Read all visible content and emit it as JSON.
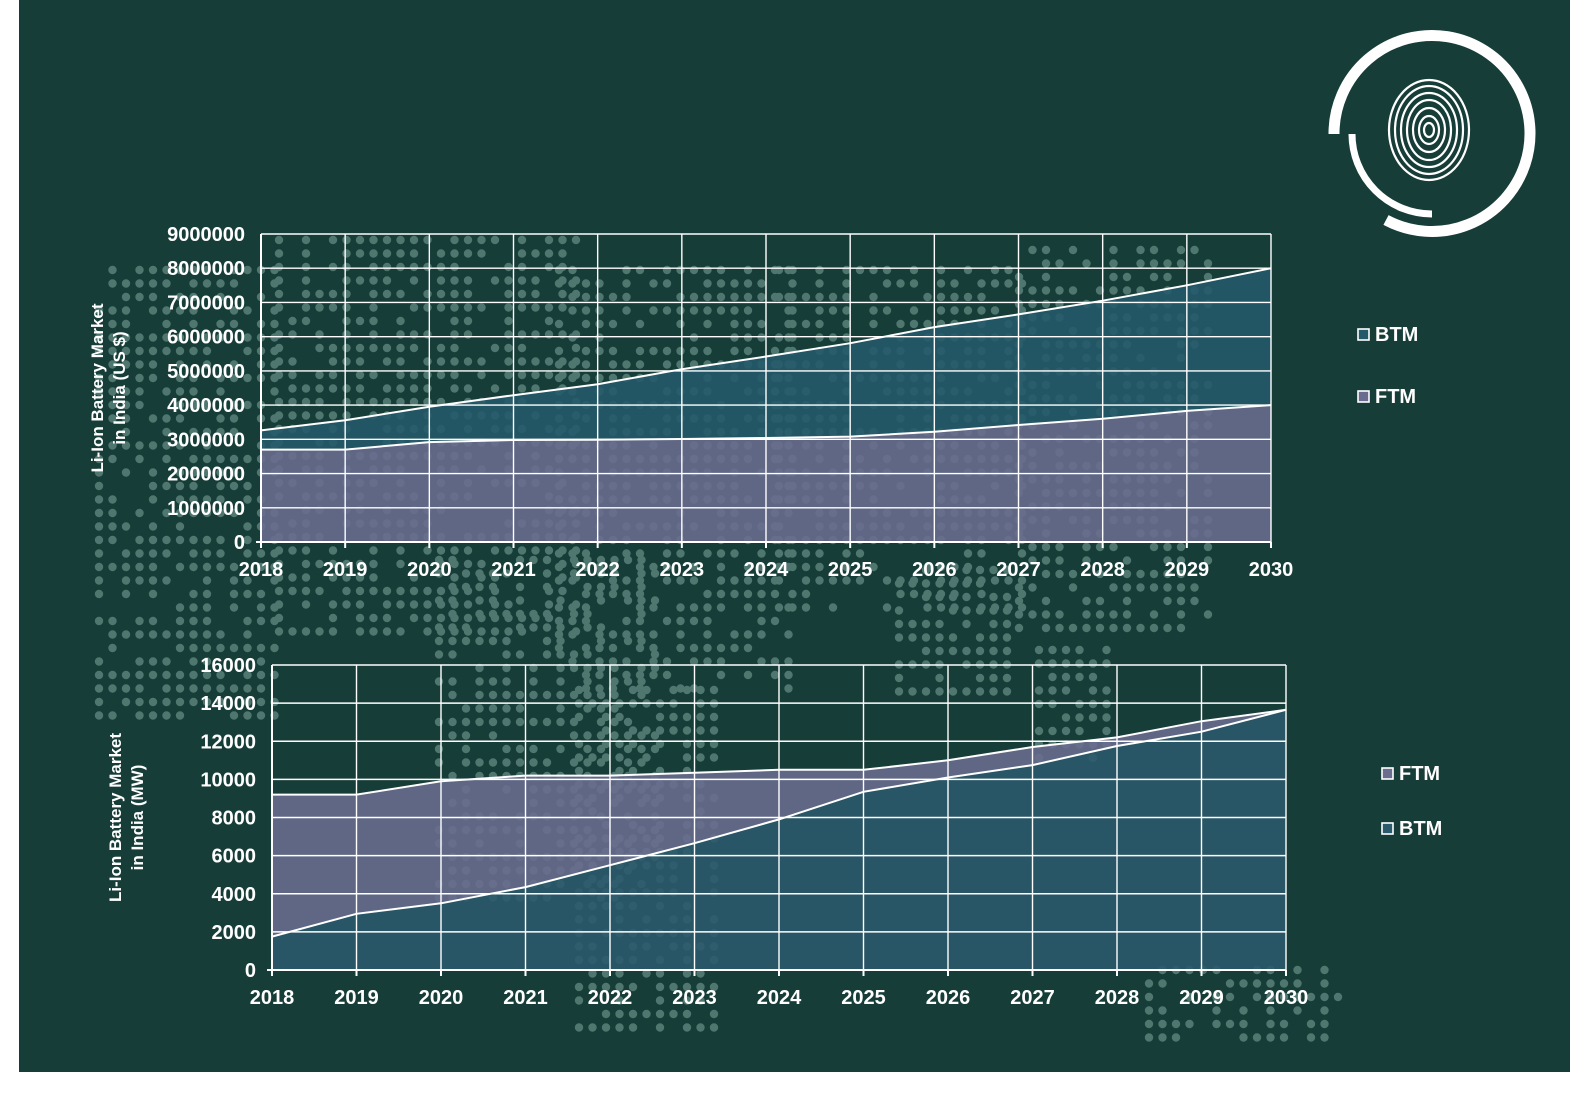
{
  "colors": {
    "background": "#173d38",
    "btm_fill": "#245a6a",
    "ftm_fill": "#6a6d90",
    "grid": "#ffffff",
    "text": "#ffffff",
    "dots": "#4f7770"
  },
  "logo": {
    "name": "fingerprint-logo"
  },
  "chart_data": [
    {
      "type": "area",
      "stacked": true,
      "categories": [
        "2018",
        "2019",
        "2020",
        "2021",
        "2022",
        "2023",
        "2024",
        "2025",
        "2026",
        "2027",
        "2028",
        "2029",
        "2030"
      ],
      "ylabel": "Li-Ion Battery Market in India (US $)",
      "ylabel_lines": [
        "Li-Ion Battery Market",
        "in India (US $)"
      ],
      "ylim": [
        0,
        9000000
      ],
      "yticks": [
        "0",
        "1000000",
        "2000000",
        "3000000",
        "4000000",
        "5000000",
        "6000000",
        "7000000",
        "8000000",
        "9000000"
      ],
      "grid": true,
      "legend_position": "right",
      "legend": [
        "BTM",
        "FTM"
      ],
      "series": [
        {
          "name": "FTM",
          "color": "#6a6d90",
          "values": [
            2700000,
            2700000,
            2920000,
            2980000,
            2990000,
            3010000,
            3040000,
            3080000,
            3220000,
            3420000,
            3600000,
            3830000,
            4000000
          ]
        },
        {
          "name": "BTM",
          "color": "#245a6a",
          "values": [
            560000,
            860000,
            1030000,
            1310000,
            1620000,
            2040000,
            2380000,
            2730000,
            3060000,
            3230000,
            3450000,
            3670000,
            4000000
          ]
        }
      ]
    },
    {
      "type": "area",
      "stacked": true,
      "categories": [
        "2018",
        "2019",
        "2020",
        "2021",
        "2022",
        "2023",
        "2024",
        "2025",
        "2026",
        "2027",
        "2028",
        "2029",
        "2030"
      ],
      "ylabel": "Li-Ion Battery Market in India (MW)",
      "ylabel_lines": [
        "Li-Ion Battery Market",
        "in India (MW)"
      ],
      "ylim": [
        0,
        16000
      ],
      "yticks": [
        "0",
        "2000",
        "4000",
        "6000",
        "8000",
        "10000",
        "12000",
        "14000",
        "16000"
      ],
      "grid": true,
      "legend_position": "right",
      "legend": [
        "FTM",
        "BTM"
      ],
      "series": [
        {
          "name": "BTM",
          "color": "#2b5a6c",
          "values": [
            1750,
            2950,
            3500,
            4350,
            5500,
            6650,
            7900,
            9350,
            10100,
            10750,
            11750,
            12500,
            13650
          ]
        },
        {
          "name": "FTM",
          "color": "#6a6d90",
          "values": [
            7450,
            6250,
            6400,
            5850,
            4700,
            3700,
            2600,
            1150,
            900,
            950,
            450,
            550,
            0
          ]
        }
      ]
    }
  ]
}
